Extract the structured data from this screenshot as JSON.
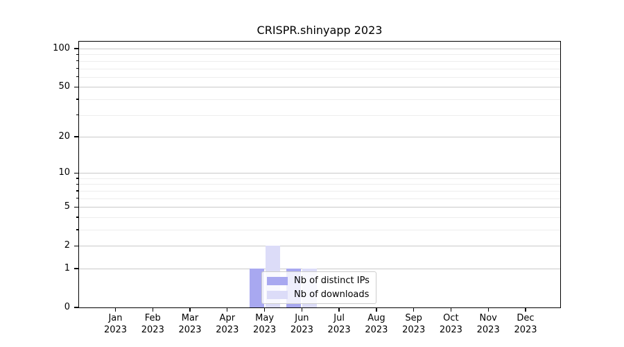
{
  "title": "CRISPR.shinyapp 2023",
  "year_label": "2023",
  "months": [
    "Jan",
    "Feb",
    "Mar",
    "Apr",
    "May",
    "Jun",
    "Jul",
    "Aug",
    "Sep",
    "Oct",
    "Nov",
    "Dec"
  ],
  "y_tick_labels": [
    "0",
    "1",
    "2",
    "5",
    "10",
    "20",
    "50",
    "100"
  ],
  "legend": {
    "items": [
      {
        "label": "Nb of distinct IPs",
        "color": "#a8a8f0"
      },
      {
        "label": "Nb of downloads",
        "color": "#dcdcf8"
      }
    ]
  },
  "colors": {
    "distinct_ips": "#a8a8f0",
    "downloads": "#dcdcf8",
    "grid_major": "#c9c9c9",
    "grid_minor": "#ededed",
    "axis": "#000000",
    "legend_border": "#cccccc",
    "text": "#000000"
  },
  "chart_data": {
    "type": "bar",
    "title": "CRISPR.shinyapp 2023",
    "categories": [
      "Jan 2023",
      "Feb 2023",
      "Mar 2023",
      "Apr 2023",
      "May 2023",
      "Jun 2023",
      "Jul 2023",
      "Aug 2023",
      "Sep 2023",
      "Oct 2023",
      "Nov 2023",
      "Dec 2023"
    ],
    "series": [
      {
        "name": "Nb of distinct IPs",
        "color": "#a8a8f0",
        "values": [
          0,
          0,
          0,
          0,
          1,
          1,
          0,
          0,
          0,
          0,
          0,
          0
        ]
      },
      {
        "name": "Nb of downloads",
        "color": "#dcdcf8",
        "values": [
          0,
          0,
          0,
          0,
          2,
          1,
          0,
          0,
          0,
          0,
          0,
          0
        ]
      }
    ],
    "xlabel": "",
    "ylabel": "",
    "y_scale": "log1p",
    "y_ticks": [
      0,
      1,
      2,
      5,
      10,
      20,
      50,
      100
    ],
    "y_minor_grid": [
      3,
      4,
      6,
      7,
      8,
      9,
      30,
      40,
      60,
      70,
      80,
      90
    ],
    "ylim": [
      0,
      116
    ],
    "grid": "horizontal",
    "legend_position": "inside-lower-center"
  }
}
